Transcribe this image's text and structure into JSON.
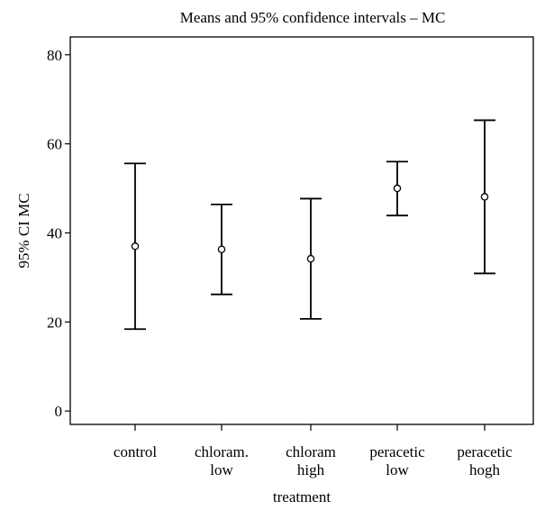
{
  "chart_data": {
    "type": "errorbar",
    "title": "Means and 95% confidence intervals – MC",
    "xlabel": "treatment",
    "ylabel": "95% CI MC",
    "ylim": [
      -3,
      84
    ],
    "yticks": [
      0,
      20,
      40,
      60,
      80
    ],
    "categories": [
      [
        "control"
      ],
      [
        "chloram.",
        "low"
      ],
      [
        "chloram",
        "high"
      ],
      [
        "peracetic",
        "low"
      ],
      [
        "peracetic",
        "hogh"
      ]
    ],
    "series": [
      {
        "means": [
          37.0,
          36.3,
          34.2,
          50.0,
          48.1
        ],
        "lower": [
          18.4,
          26.2,
          20.7,
          43.9,
          30.9
        ],
        "upper": [
          55.6,
          46.4,
          47.7,
          56.0,
          65.3
        ]
      }
    ],
    "grid": false,
    "legend": "none"
  }
}
